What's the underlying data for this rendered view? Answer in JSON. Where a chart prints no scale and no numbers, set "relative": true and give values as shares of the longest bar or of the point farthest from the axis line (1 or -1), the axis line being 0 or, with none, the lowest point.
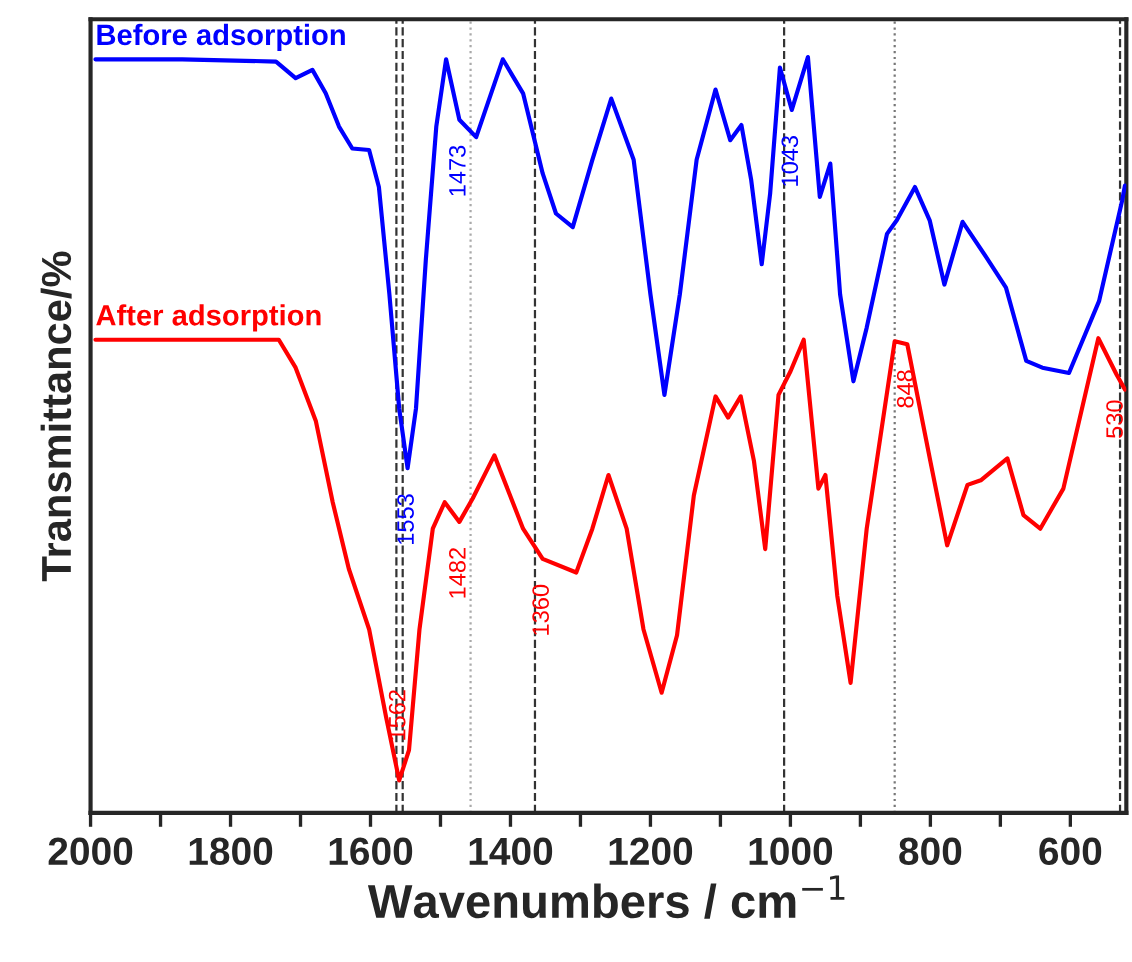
{
  "chart_data": {
    "type": "line",
    "relative": true,
    "xlabel": "Wavenumbers / cm$^{−1}$",
    "ylabel": "Transmittance/%",
    "xlim": [
      2000,
      520
    ],
    "xticks": [
      2000,
      {
        "value": 1900,
        "label": null
      },
      1800,
      {
        "value": 1700,
        "label": null
      },
      1600,
      {
        "value": 1500,
        "label": null
      },
      1400,
      {
        "value": 1300,
        "label": null
      },
      1200,
      {
        "value": 1100,
        "label": null
      },
      1000,
      {
        "value": 900,
        "label": null
      },
      800,
      {
        "value": 700,
        "label": null
      },
      600
    ],
    "legend": false,
    "grid": false,
    "marker": "none",
    "line_style": "solid",
    "series": [
      {
        "name": "Before adsorption",
        "color": "#0000ff",
        "x": [
          1993,
          1869,
          1735,
          1707,
          1683,
          1664,
          1645,
          1626,
          1602,
          1588,
          1573,
          1559,
          1547,
          1535,
          1521,
          1506,
          1492,
          1473,
          1449,
          1411,
          1382,
          1354,
          1335,
          1311,
          1283,
          1256,
          1224,
          1200,
          1180,
          1158,
          1134,
          1107,
          1086,
          1070,
          1056,
          1041,
          1029,
          1015,
          998,
          975,
          958,
          943,
          929,
          910,
          891,
          862,
          848,
          822,
          801,
          780,
          754,
          720,
          692,
          663,
          640,
          602,
          559,
          526,
          522
        ],
        "values": [
          0.997,
          0.997,
          0.994,
          0.972,
          0.983,
          0.952,
          0.908,
          0.879,
          0.877,
          0.828,
          0.686,
          0.535,
          0.456,
          0.535,
          0.731,
          0.908,
          0.997,
          0.917,
          0.894,
          0.997,
          0.952,
          0.846,
          0.793,
          0.775,
          0.864,
          0.945,
          0.864,
          0.686,
          0.553,
          0.686,
          0.864,
          0.957,
          0.89,
          0.91,
          0.837,
          0.726,
          0.819,
          0.986,
          0.93,
          1.0,
          0.815,
          0.859,
          0.686,
          0.571,
          0.642,
          0.766,
          0.784,
          0.828,
          0.784,
          0.699,
          0.782,
          0.735,
          0.695,
          0.598,
          0.589,
          0.582,
          0.677,
          0.81,
          0.83
        ]
      },
      {
        "name": "After adsorption",
        "color": "#ff0000",
        "x": [
          1993,
          1869,
          1731,
          1707,
          1678,
          1654,
          1631,
          1602,
          1578,
          1559,
          1545,
          1530,
          1511,
          1494,
          1473,
          1454,
          1423,
          1382,
          1354,
          1306,
          1283,
          1260,
          1234,
          1210,
          1184,
          1162,
          1138,
          1107,
          1089,
          1071,
          1052,
          1036,
          1017,
          1000,
          981,
          960,
          950,
          933,
          914,
          891,
          851,
          833,
          800,
          776,
          747,
          728,
          690,
          667,
          643,
          610,
          560,
          534,
          522
        ],
        "values": [
          0.626,
          0.626,
          0.626,
          0.589,
          0.518,
          0.411,
          0.323,
          0.243,
          0.128,
          0.043,
          0.083,
          0.243,
          0.376,
          0.411,
          0.385,
          0.416,
          0.473,
          0.376,
          0.336,
          0.318,
          0.376,
          0.447,
          0.376,
          0.243,
          0.159,
          0.235,
          0.42,
          0.551,
          0.523,
          0.551,
          0.465,
          0.349,
          0.553,
          0.584,
          0.626,
          0.429,
          0.447,
          0.287,
          0.172,
          0.376,
          0.624,
          0.62,
          0.465,
          0.354,
          0.434,
          0.44,
          0.469,
          0.394,
          0.376,
          0.429,
          0.628,
          0.58,
          0.56
        ]
      }
    ],
    "ref_lines": [
      {
        "axis": "x",
        "value": 1563,
        "color": "#333333",
        "line_style": "dashed"
      },
      {
        "axis": "x",
        "value": 1554,
        "color": "#333333",
        "line_style": "dashed"
      },
      {
        "axis": "x",
        "value": 1457,
        "color": "#aaaaaa",
        "line_style": "dotted"
      },
      {
        "axis": "x",
        "value": 1365,
        "color": "#333333",
        "line_style": "dashed"
      },
      {
        "axis": "x",
        "value": 1009,
        "color": "#333333",
        "line_style": "dashed"
      },
      {
        "axis": "x",
        "value": 851,
        "color": "#777777",
        "line_style": "dotted"
      },
      {
        "axis": "x",
        "value": 529,
        "color": "#333333",
        "line_style": "dashed"
      }
    ],
    "annotations": [
      {
        "text": "1553",
        "x": 1547,
        "y": 0.456
      },
      {
        "text": "1473",
        "x": 1473,
        "y": 0.917
      },
      {
        "text": "1043",
        "x": 998,
        "y": 0.93
      },
      {
        "text": "1562",
        "x": 1559,
        "y": 0.043
      },
      {
        "text": "1482",
        "x": 1473,
        "y": 0.385
      },
      {
        "text": "1360",
        "x": 1354,
        "y": 0.336
      },
      {
        "text": "848",
        "x": 833,
        "y": 0.62
      },
      {
        "text": "530",
        "x": 534,
        "y": 0.58
      }
    ]
  }
}
